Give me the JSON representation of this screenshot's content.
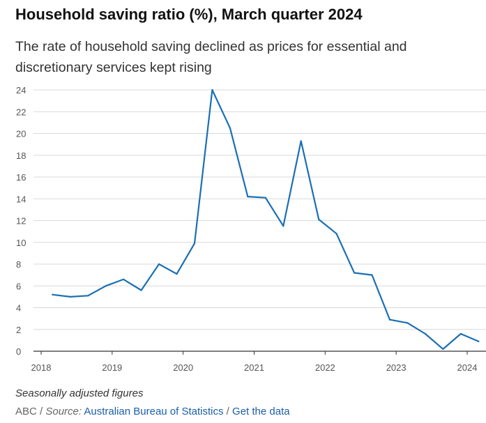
{
  "header": {
    "title": "Household saving ratio (%), March quarter 2024",
    "subtitle": "The rate of household saving declined as prices for essential and discretionary services kept rising"
  },
  "footer": {
    "note": "Seasonally adjusted figures",
    "prefix": "ABC / ",
    "source_label": "Source:",
    "source_link": "Australian Bureau of Statistics",
    "separator": " / ",
    "data_link": "Get the data"
  },
  "colors": {
    "line": "#1a6fb4",
    "grid": "#d9d9d9",
    "axis": "#333333"
  },
  "chart_data": {
    "type": "line",
    "title": "Household saving ratio (%), March quarter 2024",
    "xlabel": "",
    "ylabel": "",
    "ylim": [
      0,
      24
    ],
    "yticks": [
      0,
      2,
      4,
      6,
      8,
      10,
      12,
      14,
      16,
      18,
      20,
      22,
      24
    ],
    "xlim": [
      2018,
      2024.25
    ],
    "xticks": [
      2018,
      2019,
      2020,
      2021,
      2022,
      2023,
      2024
    ],
    "grid": true,
    "series": [
      {
        "name": "Household saving ratio",
        "x": [
          2018.16,
          2018.41,
          2018.66,
          2018.91,
          2019.16,
          2019.41,
          2019.66,
          2019.91,
          2020.16,
          2020.41,
          2020.66,
          2020.91,
          2021.16,
          2021.41,
          2021.66,
          2021.91,
          2022.16,
          2022.41,
          2022.66,
          2022.91,
          2023.16,
          2023.41,
          2023.66,
          2023.91,
          2024.16
        ],
        "values": [
          5.2,
          5.0,
          5.1,
          6.0,
          6.6,
          5.6,
          8.0,
          7.1,
          9.9,
          24.0,
          20.5,
          14.2,
          14.1,
          11.5,
          19.3,
          12.1,
          10.8,
          7.2,
          7.0,
          2.9,
          2.6,
          1.6,
          0.2,
          1.6,
          0.9
        ]
      }
    ]
  }
}
